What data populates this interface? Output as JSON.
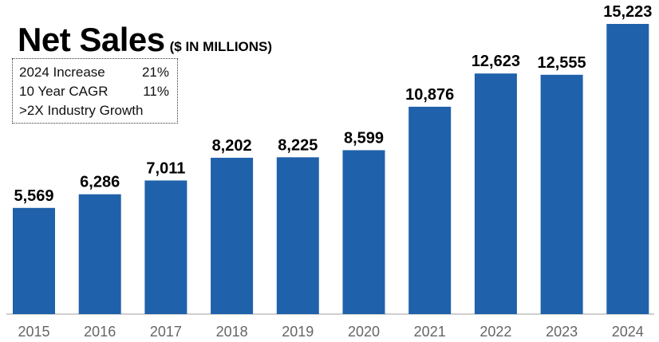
{
  "chart_data": {
    "type": "bar",
    "title": "Net Sales",
    "subtitle": "($ IN MILLIONS)",
    "categories": [
      "2015",
      "2016",
      "2017",
      "2018",
      "2019",
      "2020",
      "2021",
      "2022",
      "2023",
      "2024"
    ],
    "values": [
      5569,
      6286,
      7011,
      8202,
      8225,
      8599,
      10876,
      12623,
      12555,
      15223
    ],
    "value_labels": [
      "5,569",
      "6,286",
      "7,011",
      "8,202",
      "8,225",
      "8,599",
      "10,876",
      "12,623",
      "12,555",
      "15,223"
    ],
    "xlabel": "",
    "ylabel": "",
    "ylim": [
      0,
      15223
    ],
    "grid": false,
    "colors": {
      "bar": "#1f61aa",
      "axis": "#bfbfbf",
      "tick_text": "#666666"
    }
  },
  "stats_box": {
    "rows": [
      {
        "label": "2024 Increase",
        "value": "21%"
      },
      {
        "label": "10 Year CAGR",
        "value": "11%"
      },
      {
        "label": ">2X Industry Growth",
        "value": ""
      }
    ]
  }
}
